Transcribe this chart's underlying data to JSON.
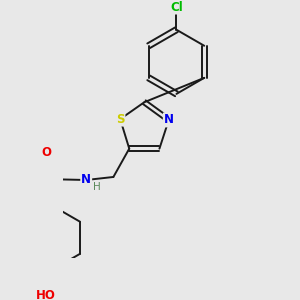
{
  "background_color": "#e8e8e8",
  "bond_color": "#1a1a1a",
  "atom_colors": {
    "S": "#cccc00",
    "N": "#0000ee",
    "O": "#ee0000",
    "Cl": "#00bb00",
    "C": "#1a1a1a",
    "H": "#5a8a5a"
  }
}
